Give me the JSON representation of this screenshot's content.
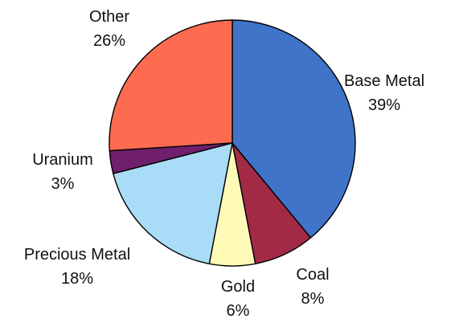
{
  "chart_data": {
    "type": "pie",
    "title": "",
    "start_angle_deg": 0,
    "direction": "clockwise",
    "slices": [
      {
        "label": "Base Metal",
        "value": 39,
        "value_text": "39%",
        "color": "#3f74c8"
      },
      {
        "label": "Coal",
        "value": 8,
        "value_text": "8%",
        "color": "#a22a44"
      },
      {
        "label": "Gold",
        "value": 6,
        "value_text": "6%",
        "color": "#fefbb8"
      },
      {
        "label": "Precious Metal",
        "value": 18,
        "value_text": "18%",
        "color": "#a9dcf7"
      },
      {
        "label": "Uranium",
        "value": 3,
        "value_text": "3%",
        "color": "#6f1f6c"
      },
      {
        "label": "Other",
        "value": 26,
        "value_text": "26%",
        "color": "#fd6b50"
      }
    ]
  }
}
